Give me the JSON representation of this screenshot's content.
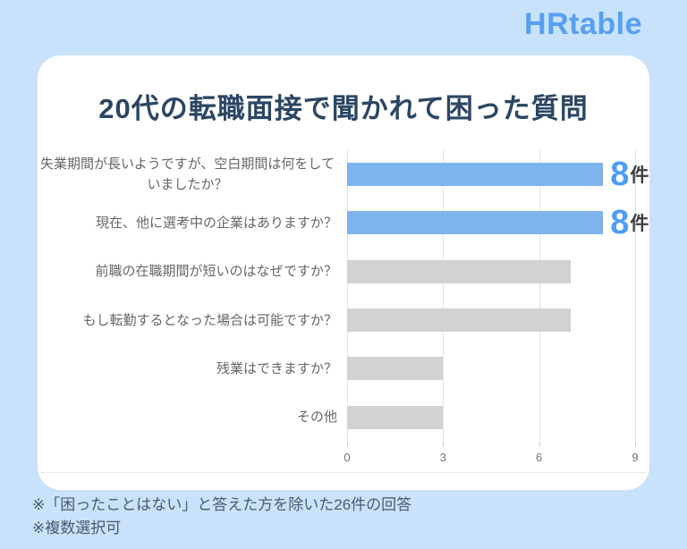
{
  "header": {
    "logo": "HRtable"
  },
  "chart_data": {
    "type": "bar",
    "orientation": "horizontal",
    "title": "20代の転職面接で聞かれて困った質問",
    "categories": [
      "失業期間が長いようですが、空白期間は何をしていましたか？",
      "現在、他に選考中の企業はありますか？",
      "前職の在職期間が短いのはなぜですか？",
      "もし転勤するとなった場合は可能ですか？",
      "残業はできますか？",
      "その他"
    ],
    "values": [
      8,
      8,
      7,
      7,
      3,
      3
    ],
    "highlighted": [
      true,
      true,
      false,
      false,
      false,
      false
    ],
    "show_value_label": [
      true,
      true,
      false,
      false,
      false,
      false
    ],
    "value_label_unit": "件",
    "xlabel": "",
    "ylabel": "",
    "xlim": [
      0,
      9
    ],
    "xticks": [
      0,
      3,
      6,
      9
    ],
    "grid": true,
    "legend": false
  },
  "footnotes": [
    "※「困ったことはない」と答えた方を除いた26件の回答",
    "※複数選択可"
  ],
  "colors": {
    "page_background": "#c9e2fb",
    "card_background": "#ffffff",
    "logo": "#57a0f1",
    "title": "#2b4663",
    "bar_highlight": "#7db4ee",
    "bar_default": "#d2d2d2",
    "value_number": "#4d9ef2",
    "value_unit": "#3f3f3f",
    "category_label": "#666666",
    "tick_label": "#757575",
    "gridline": "#e2e2e2",
    "footnote": "#4c5a6b"
  }
}
